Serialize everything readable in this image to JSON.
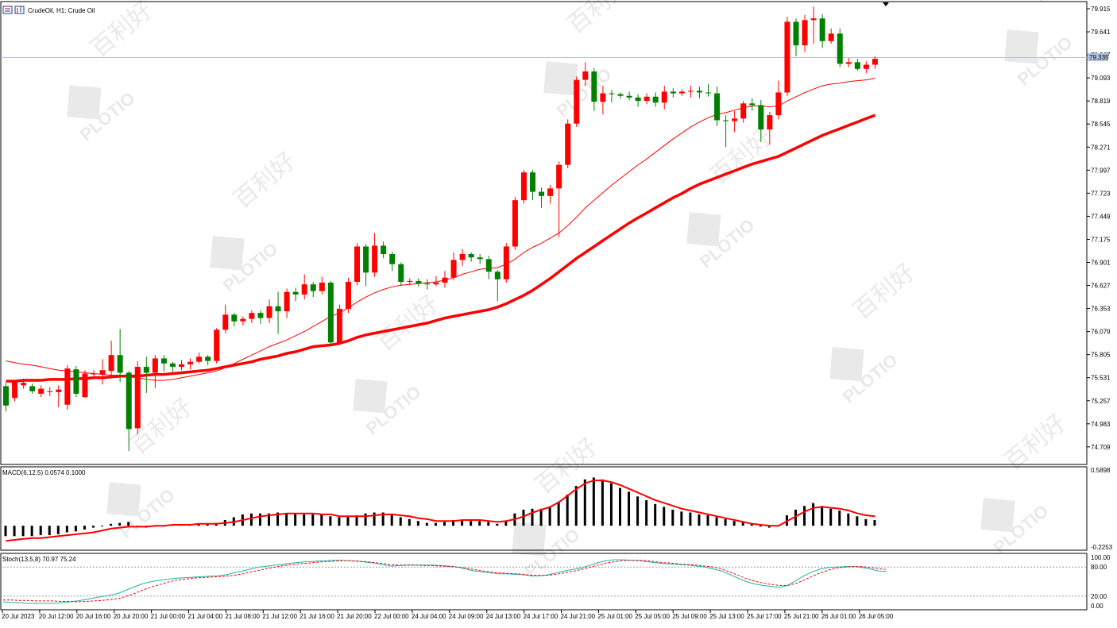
{
  "chart_header": {
    "title": "CrudeOil, H1:  Crude Oil"
  },
  "watermark": {
    "brand": "PLOTIO",
    "cjk": "百利好"
  },
  "colors": {
    "bull": "#ff0000",
    "bear": "#008000",
    "ma": "#ff0000",
    "macd_signal": "#ff0000",
    "stoch_main": "#20b2aa",
    "stoch_signal": "#ff0000",
    "price_line": "#b0c4de"
  },
  "current_price_label": "79.335",
  "chart_data": [
    {
      "type": "candlestick",
      "title": "CrudeOil, H1:  Crude Oil",
      "ylim": [
        74.5,
        80.0
      ],
      "y_ticks": [
        "79.915",
        "79.641",
        "79.367",
        "79.093",
        "78.819",
        "78.545",
        "78.271",
        "77.997",
        "77.723",
        "77.449",
        "77.175",
        "76.901",
        "76.627",
        "76.353",
        "76.079",
        "75.805",
        "75.531",
        "75.257",
        "74.983",
        "74.709"
      ],
      "x_ticks": [
        "20 Jul 2023",
        "20 Jul 12:00",
        "20 Jul 16:00",
        "20 Jul 20:00",
        "21 Jul 00:00",
        "21 Jul 04:00",
        "21 Jul 08:00",
        "21 Jul 12:00",
        "21 Jul 16:00",
        "21 Jul 20:00",
        "22 Jul 00:00",
        "24 Jul 04:00",
        "24 Jul 09:00",
        "24 Jul 13:00",
        "24 Jul 17:00",
        "24 Jul 21:00",
        "25 Jul 01:00",
        "25 Jul 05:00",
        "25 Jul 09:00",
        "25 Jul 13:00",
        "25 Jul 17:00",
        "25 Jul 21:00",
        "26 Jul 01:00",
        "26 Jul 05:00"
      ],
      "candles": [
        [
          75.43,
          75.2,
          75.13,
          75.47
        ],
        [
          75.29,
          75.49,
          75.25,
          75.5
        ],
        [
          75.44,
          75.47,
          75.4,
          75.52
        ],
        [
          75.43,
          75.37,
          75.34,
          75.46
        ],
        [
          75.34,
          75.4,
          75.3,
          75.44
        ],
        [
          75.37,
          75.37,
          75.31,
          75.42
        ],
        [
          75.36,
          75.39,
          75.18,
          75.44
        ],
        [
          75.21,
          75.64,
          75.15,
          75.68
        ],
        [
          75.63,
          75.34,
          75.3,
          75.67
        ],
        [
          75.3,
          75.58,
          75.29,
          75.62
        ],
        [
          75.58,
          75.58,
          75.52,
          75.62
        ],
        [
          75.57,
          75.62,
          75.45,
          75.75
        ],
        [
          75.61,
          75.8,
          75.53,
          75.97
        ],
        [
          75.8,
          75.59,
          75.48,
          76.11
        ],
        [
          75.59,
          74.92,
          74.66,
          75.61
        ],
        [
          74.93,
          75.66,
          74.86,
          75.73
        ],
        [
          75.66,
          75.59,
          75.35,
          75.78
        ],
        [
          75.59,
          75.76,
          75.41,
          75.8
        ],
        [
          75.76,
          75.7,
          75.6,
          75.8
        ],
        [
          75.7,
          75.66,
          75.6,
          75.72
        ],
        [
          75.66,
          75.69,
          75.62,
          75.74
        ],
        [
          75.69,
          75.72,
          75.63,
          75.76
        ],
        [
          75.72,
          75.78,
          75.7,
          75.83
        ],
        [
          75.78,
          75.73,
          75.68,
          75.8
        ],
        [
          75.73,
          76.1,
          75.7,
          76.12
        ],
        [
          76.1,
          76.28,
          76.06,
          76.4
        ],
        [
          76.28,
          76.2,
          76.14,
          76.3
        ],
        [
          76.2,
          76.23,
          76.15,
          76.26
        ],
        [
          76.23,
          76.3,
          76.18,
          76.33
        ],
        [
          76.3,
          76.24,
          76.17,
          76.33
        ],
        [
          76.24,
          76.38,
          76.18,
          76.46
        ],
        [
          76.38,
          76.32,
          76.05,
          76.55
        ],
        [
          76.32,
          76.55,
          76.24,
          76.59
        ],
        [
          76.55,
          76.52,
          76.44,
          76.6
        ],
        [
          76.52,
          76.64,
          76.46,
          76.76
        ],
        [
          76.64,
          76.56,
          76.49,
          76.67
        ],
        [
          76.56,
          76.66,
          76.52,
          76.73
        ],
        [
          76.66,
          75.95,
          75.92,
          76.68
        ],
        [
          75.95,
          76.35,
          75.92,
          76.4
        ],
        [
          76.35,
          76.67,
          76.3,
          76.72
        ],
        [
          76.67,
          77.09,
          76.63,
          77.13
        ],
        [
          77.09,
          76.78,
          76.62,
          77.12
        ],
        [
          76.78,
          77.1,
          76.73,
          77.25
        ],
        [
          77.1,
          77.0,
          76.95,
          77.15
        ],
        [
          77.0,
          76.88,
          76.8,
          77.03
        ],
        [
          76.88,
          76.67,
          76.63,
          76.9
        ],
        [
          76.67,
          76.68,
          76.63,
          76.71
        ],
        [
          76.68,
          76.65,
          76.61,
          76.71
        ],
        [
          76.65,
          76.64,
          76.58,
          76.7
        ],
        [
          76.64,
          76.66,
          76.62,
          76.74
        ],
        [
          76.66,
          76.72,
          76.6,
          76.8
        ],
        [
          76.72,
          76.93,
          76.69,
          77.02
        ],
        [
          76.93,
          77.0,
          76.86,
          77.06
        ],
        [
          77.0,
          76.96,
          76.91,
          77.02
        ],
        [
          76.96,
          76.94,
          76.88,
          77.0
        ],
        [
          76.94,
          76.79,
          76.7,
          76.98
        ],
        [
          76.79,
          76.7,
          76.44,
          76.81
        ],
        [
          76.7,
          77.09,
          76.66,
          77.13
        ],
        [
          77.09,
          77.64,
          77.05,
          77.68
        ],
        [
          77.64,
          77.97,
          77.6,
          78.0
        ],
        [
          77.97,
          77.74,
          77.64,
          78.0
        ],
        [
          77.74,
          77.69,
          77.55,
          77.79
        ],
        [
          77.69,
          77.78,
          77.6,
          77.82
        ],
        [
          77.78,
          78.06,
          77.2,
          78.1
        ],
        [
          78.06,
          78.55,
          78.02,
          78.6
        ],
        [
          78.55,
          79.07,
          78.51,
          79.11
        ],
        [
          79.07,
          79.17,
          79.0,
          79.28
        ],
        [
          79.17,
          78.81,
          78.7,
          79.21
        ],
        [
          78.81,
          78.91,
          78.66,
          79.0
        ],
        [
          78.91,
          78.9,
          78.8,
          78.95
        ],
        [
          78.9,
          78.88,
          78.85,
          78.92
        ],
        [
          78.88,
          78.86,
          78.83,
          78.93
        ],
        [
          78.86,
          78.82,
          78.75,
          78.9
        ],
        [
          78.82,
          78.87,
          78.78,
          78.91
        ],
        [
          78.87,
          78.8,
          78.75,
          78.92
        ],
        [
          78.8,
          78.93,
          78.72,
          79.0
        ],
        [
          78.93,
          78.91,
          78.86,
          78.97
        ],
        [
          78.91,
          78.93,
          78.88,
          78.96
        ],
        [
          78.93,
          78.94,
          78.86,
          79.0
        ],
        [
          78.94,
          78.92,
          78.85,
          78.99
        ],
        [
          78.92,
          78.91,
          78.87,
          79.02
        ],
        [
          78.91,
          78.59,
          78.52,
          78.99
        ],
        [
          78.59,
          78.58,
          78.27,
          78.65
        ],
        [
          78.58,
          78.61,
          78.45,
          78.7
        ],
        [
          78.61,
          78.79,
          78.56,
          78.82
        ],
        [
          78.79,
          78.77,
          78.7,
          78.85
        ],
        [
          78.77,
          78.48,
          78.33,
          78.83
        ],
        [
          78.48,
          78.65,
          78.3,
          78.69
        ],
        [
          78.65,
          78.92,
          78.6,
          79.06
        ],
        [
          78.92,
          79.76,
          78.88,
          79.82
        ],
        [
          79.76,
          79.48,
          79.35,
          79.8
        ],
        [
          79.48,
          79.78,
          79.4,
          79.84
        ],
        [
          79.78,
          79.8,
          79.5,
          79.94
        ],
        [
          79.8,
          79.53,
          79.45,
          79.85
        ],
        [
          79.53,
          79.62,
          79.5,
          79.68
        ],
        [
          79.62,
          79.26,
          79.22,
          79.68
        ],
        [
          79.26,
          79.28,
          79.22,
          79.33
        ],
        [
          79.28,
          79.2,
          79.18,
          79.32
        ],
        [
          79.2,
          79.25,
          79.15,
          79.29
        ],
        [
          79.25,
          79.32,
          79.2,
          79.35
        ]
      ],
      "ma_fast": [
        75.73,
        75.71,
        75.69,
        75.68,
        75.66,
        75.64,
        75.62,
        75.61,
        75.6,
        75.59,
        75.58,
        75.57,
        75.56,
        75.56,
        75.54,
        75.53,
        75.51,
        75.5,
        75.5,
        75.51,
        75.53,
        75.55,
        75.57,
        75.59,
        75.61,
        75.65,
        75.7,
        75.75,
        75.8,
        75.85,
        75.9,
        75.94,
        75.98,
        76.03,
        76.08,
        76.14,
        76.2,
        76.26,
        76.3,
        76.36,
        76.43,
        76.49,
        76.54,
        76.58,
        76.61,
        76.63,
        76.64,
        76.65,
        76.66,
        76.67,
        76.69,
        76.72,
        76.76,
        76.79,
        76.82,
        76.83,
        76.84,
        76.88,
        76.94,
        77.02,
        77.08,
        77.13,
        77.19,
        77.25,
        77.34,
        77.44,
        77.55,
        77.64,
        77.73,
        77.82,
        77.9,
        77.98,
        78.06,
        78.13,
        78.21,
        78.29,
        78.37,
        78.44,
        78.51,
        78.57,
        78.62,
        78.66,
        78.68,
        78.71,
        78.74,
        78.76,
        78.76,
        78.75,
        78.76,
        78.82,
        78.87,
        78.92,
        78.96,
        79.0,
        79.02,
        79.03,
        79.05,
        79.06,
        79.07,
        79.09
      ],
      "ma_slow": [
        75.49,
        75.49,
        75.5,
        75.5,
        75.5,
        75.51,
        75.51,
        75.51,
        75.52,
        75.52,
        75.53,
        75.53,
        75.54,
        75.55,
        75.55,
        75.55,
        75.56,
        75.57,
        75.57,
        75.58,
        75.59,
        75.6,
        75.61,
        75.62,
        75.64,
        75.66,
        75.68,
        75.7,
        75.72,
        75.75,
        75.77,
        75.79,
        75.82,
        75.84,
        75.87,
        75.9,
        75.91,
        75.92,
        75.94,
        75.97,
        76.01,
        76.04,
        76.06,
        76.08,
        76.1,
        76.12,
        76.14,
        76.16,
        76.18,
        76.21,
        76.24,
        76.26,
        76.28,
        76.3,
        76.32,
        76.34,
        76.37,
        76.41,
        76.46,
        76.51,
        76.57,
        76.64,
        76.71,
        76.79,
        76.87,
        76.95,
        77.02,
        77.09,
        77.16,
        77.23,
        77.3,
        77.37,
        77.43,
        77.49,
        77.55,
        77.61,
        77.67,
        77.72,
        77.78,
        77.83,
        77.87,
        77.91,
        77.95,
        77.99,
        78.03,
        78.07,
        78.1,
        78.13,
        78.16,
        78.21,
        78.26,
        78.31,
        78.36,
        78.41,
        78.45,
        78.49,
        78.53,
        78.57,
        78.61,
        78.65
      ]
    },
    {
      "type": "bar",
      "title": "MACD(6,12,5) 0.0574 0.1000",
      "ylim": [
        -0.2253,
        0.5898
      ],
      "y_ticks": [
        "0.5898",
        "-0.2253"
      ],
      "histogram": [
        -0.11,
        -0.11,
        -0.11,
        -0.11,
        -0.1,
        -0.1,
        -0.09,
        -0.07,
        -0.06,
        -0.04,
        -0.02,
        0.0,
        0.02,
        0.03,
        0.04,
        -0.01,
        -0.02,
        -0.01,
        0.0,
        0.01,
        0.01,
        0.01,
        0.02,
        0.02,
        0.03,
        0.06,
        0.09,
        0.12,
        0.13,
        0.13,
        0.13,
        0.14,
        0.13,
        0.13,
        0.12,
        0.12,
        0.12,
        0.1,
        0.09,
        0.1,
        0.11,
        0.13,
        0.14,
        0.14,
        0.12,
        0.09,
        0.07,
        0.05,
        0.03,
        0.03,
        0.04,
        0.06,
        0.06,
        0.05,
        0.05,
        0.04,
        0.02,
        0.05,
        0.13,
        0.17,
        0.18,
        0.18,
        0.2,
        0.25,
        0.33,
        0.42,
        0.49,
        0.51,
        0.49,
        0.45,
        0.4,
        0.36,
        0.31,
        0.27,
        0.23,
        0.2,
        0.17,
        0.15,
        0.14,
        0.12,
        0.11,
        0.09,
        0.07,
        0.05,
        0.04,
        0.02,
        -0.01,
        -0.02,
        0.0,
        0.11,
        0.17,
        0.21,
        0.24,
        0.21,
        0.18,
        0.16,
        0.13,
        0.1,
        0.07,
        0.06
      ],
      "signal": [
        -0.16,
        -0.15,
        -0.14,
        -0.13,
        -0.13,
        -0.12,
        -0.11,
        -0.1,
        -0.09,
        -0.08,
        -0.07,
        -0.05,
        -0.03,
        -0.02,
        -0.01,
        -0.01,
        -0.01,
        0.0,
        0.0,
        0.01,
        0.01,
        0.01,
        0.02,
        0.02,
        0.02,
        0.03,
        0.04,
        0.06,
        0.08,
        0.1,
        0.11,
        0.12,
        0.13,
        0.13,
        0.13,
        0.13,
        0.12,
        0.12,
        0.1,
        0.1,
        0.1,
        0.1,
        0.11,
        0.12,
        0.12,
        0.11,
        0.1,
        0.08,
        0.07,
        0.05,
        0.05,
        0.05,
        0.06,
        0.06,
        0.06,
        0.05,
        0.04,
        0.05,
        0.07,
        0.1,
        0.14,
        0.17,
        0.2,
        0.25,
        0.32,
        0.39,
        0.45,
        0.48,
        0.48,
        0.46,
        0.43,
        0.39,
        0.35,
        0.31,
        0.27,
        0.24,
        0.21,
        0.18,
        0.16,
        0.14,
        0.12,
        0.1,
        0.08,
        0.06,
        0.04,
        0.02,
        0.01,
        0.0,
        0.0,
        0.05,
        0.1,
        0.15,
        0.19,
        0.2,
        0.19,
        0.18,
        0.16,
        0.13,
        0.11,
        0.1
      ]
    },
    {
      "type": "line",
      "title": "Stoch(13,5,8) 70.97 75.24",
      "ylim": [
        0,
        100
      ],
      "y_ticks": [
        "100.00",
        "80.00",
        "20.00",
        "0.00"
      ],
      "levels": [
        80,
        20
      ],
      "main": [
        8,
        7,
        6,
        5,
        5,
        5,
        5,
        6,
        8,
        10,
        13,
        16,
        19,
        22,
        26,
        33,
        40,
        46,
        50,
        53,
        55,
        57,
        58,
        59,
        60,
        61,
        62,
        64,
        68,
        72,
        76,
        80,
        82,
        84,
        86,
        88,
        90,
        91,
        92,
        93,
        94,
        94,
        93,
        92,
        90,
        88,
        85,
        82,
        83,
        84,
        84,
        84,
        84,
        83,
        82,
        80,
        76,
        72,
        70,
        68,
        66,
        66,
        65,
        64,
        62,
        62,
        64,
        68,
        72,
        75,
        78,
        83,
        89,
        93,
        95,
        95,
        94,
        93,
        91,
        89,
        87,
        86,
        85,
        84,
        82,
        80,
        76,
        72,
        65,
        57,
        50,
        45,
        42,
        40,
        38,
        42,
        52,
        62,
        70,
        76,
        79,
        80,
        81,
        81,
        79,
        76,
        72,
        71
      ],
      "signal": [
        12,
        12,
        11,
        11,
        10,
        10,
        10,
        9,
        9,
        8,
        9,
        10,
        11,
        13,
        15,
        20,
        26,
        33,
        39,
        44,
        49,
        53,
        55,
        57,
        58,
        59,
        60,
        61,
        63,
        66,
        70,
        73,
        77,
        80,
        83,
        85,
        87,
        88,
        90,
        91,
        92,
        93,
        93,
        92,
        91,
        89,
        87,
        85,
        84,
        84,
        84,
        83,
        83,
        82,
        81,
        80,
        78,
        75,
        72,
        70,
        68,
        67,
        66,
        65,
        63,
        63,
        63,
        65,
        68,
        71,
        75,
        79,
        84,
        88,
        91,
        93,
        94,
        94,
        93,
        91,
        89,
        88,
        86,
        85,
        84,
        82,
        80,
        76,
        70,
        63,
        56,
        51,
        47,
        44,
        42,
        42,
        46,
        53,
        61,
        68,
        74,
        78,
        80,
        81,
        81,
        79,
        77,
        75
      ]
    }
  ]
}
